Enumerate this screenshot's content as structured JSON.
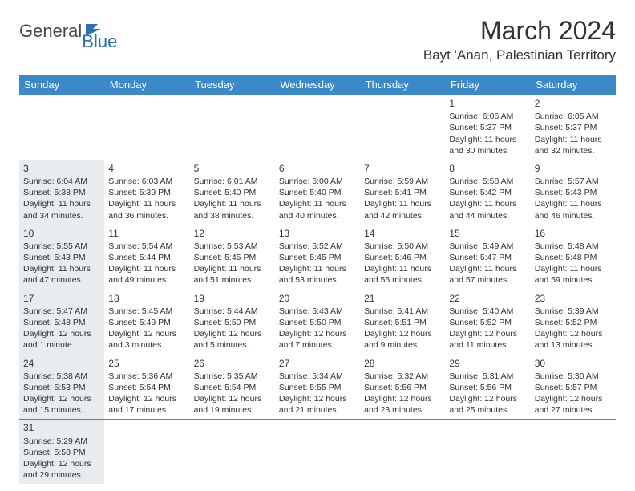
{
  "logo": {
    "general": "General",
    "blue": "Blue"
  },
  "title": "March 2024",
  "location": "Bayt 'Anan, Palestinian Territory",
  "colors": {
    "header_bg": "#3b89c9",
    "header_text": "#ffffff",
    "shaded_bg": "#e9ecef",
    "border": "#3b89c9",
    "text": "#333333",
    "logo_blue": "#2a72b5"
  },
  "dayNames": [
    "Sunday",
    "Monday",
    "Tuesday",
    "Wednesday",
    "Thursday",
    "Friday",
    "Saturday"
  ],
  "weeks": [
    [
      {
        "empty": true
      },
      {
        "empty": true
      },
      {
        "empty": true
      },
      {
        "empty": true
      },
      {
        "empty": true
      },
      {
        "num": "1",
        "sunrise": "Sunrise: 6:06 AM",
        "sunset": "Sunset: 5:37 PM",
        "daylight": "Daylight: 11 hours and 30 minutes."
      },
      {
        "num": "2",
        "sunrise": "Sunrise: 6:05 AM",
        "sunset": "Sunset: 5:37 PM",
        "daylight": "Daylight: 11 hours and 32 minutes."
      }
    ],
    [
      {
        "num": "3",
        "shaded": true,
        "sunrise": "Sunrise: 6:04 AM",
        "sunset": "Sunset: 5:38 PM",
        "daylight": "Daylight: 11 hours and 34 minutes."
      },
      {
        "num": "4",
        "sunrise": "Sunrise: 6:03 AM",
        "sunset": "Sunset: 5:39 PM",
        "daylight": "Daylight: 11 hours and 36 minutes."
      },
      {
        "num": "5",
        "sunrise": "Sunrise: 6:01 AM",
        "sunset": "Sunset: 5:40 PM",
        "daylight": "Daylight: 11 hours and 38 minutes."
      },
      {
        "num": "6",
        "sunrise": "Sunrise: 6:00 AM",
        "sunset": "Sunset: 5:40 PM",
        "daylight": "Daylight: 11 hours and 40 minutes."
      },
      {
        "num": "7",
        "sunrise": "Sunrise: 5:59 AM",
        "sunset": "Sunset: 5:41 PM",
        "daylight": "Daylight: 11 hours and 42 minutes."
      },
      {
        "num": "8",
        "sunrise": "Sunrise: 5:58 AM",
        "sunset": "Sunset: 5:42 PM",
        "daylight": "Daylight: 11 hours and 44 minutes."
      },
      {
        "num": "9",
        "sunrise": "Sunrise: 5:57 AM",
        "sunset": "Sunset: 5:43 PM",
        "daylight": "Daylight: 11 hours and 46 minutes."
      }
    ],
    [
      {
        "num": "10",
        "shaded": true,
        "sunrise": "Sunrise: 5:55 AM",
        "sunset": "Sunset: 5:43 PM",
        "daylight": "Daylight: 11 hours and 47 minutes."
      },
      {
        "num": "11",
        "sunrise": "Sunrise: 5:54 AM",
        "sunset": "Sunset: 5:44 PM",
        "daylight": "Daylight: 11 hours and 49 minutes."
      },
      {
        "num": "12",
        "sunrise": "Sunrise: 5:53 AM",
        "sunset": "Sunset: 5:45 PM",
        "daylight": "Daylight: 11 hours and 51 minutes."
      },
      {
        "num": "13",
        "sunrise": "Sunrise: 5:52 AM",
        "sunset": "Sunset: 5:45 PM",
        "daylight": "Daylight: 11 hours and 53 minutes."
      },
      {
        "num": "14",
        "sunrise": "Sunrise: 5:50 AM",
        "sunset": "Sunset: 5:46 PM",
        "daylight": "Daylight: 11 hours and 55 minutes."
      },
      {
        "num": "15",
        "sunrise": "Sunrise: 5:49 AM",
        "sunset": "Sunset: 5:47 PM",
        "daylight": "Daylight: 11 hours and 57 minutes."
      },
      {
        "num": "16",
        "sunrise": "Sunrise: 5:48 AM",
        "sunset": "Sunset: 5:48 PM",
        "daylight": "Daylight: 11 hours and 59 minutes."
      }
    ],
    [
      {
        "num": "17",
        "shaded": true,
        "sunrise": "Sunrise: 5:47 AM",
        "sunset": "Sunset: 5:48 PM",
        "daylight": "Daylight: 12 hours and 1 minute."
      },
      {
        "num": "18",
        "sunrise": "Sunrise: 5:45 AM",
        "sunset": "Sunset: 5:49 PM",
        "daylight": "Daylight: 12 hours and 3 minutes."
      },
      {
        "num": "19",
        "sunrise": "Sunrise: 5:44 AM",
        "sunset": "Sunset: 5:50 PM",
        "daylight": "Daylight: 12 hours and 5 minutes."
      },
      {
        "num": "20",
        "sunrise": "Sunrise: 5:43 AM",
        "sunset": "Sunset: 5:50 PM",
        "daylight": "Daylight: 12 hours and 7 minutes."
      },
      {
        "num": "21",
        "sunrise": "Sunrise: 5:41 AM",
        "sunset": "Sunset: 5:51 PM",
        "daylight": "Daylight: 12 hours and 9 minutes."
      },
      {
        "num": "22",
        "sunrise": "Sunrise: 5:40 AM",
        "sunset": "Sunset: 5:52 PM",
        "daylight": "Daylight: 12 hours and 11 minutes."
      },
      {
        "num": "23",
        "sunrise": "Sunrise: 5:39 AM",
        "sunset": "Sunset: 5:52 PM",
        "daylight": "Daylight: 12 hours and 13 minutes."
      }
    ],
    [
      {
        "num": "24",
        "shaded": true,
        "sunrise": "Sunrise: 5:38 AM",
        "sunset": "Sunset: 5:53 PM",
        "daylight": "Daylight: 12 hours and 15 minutes."
      },
      {
        "num": "25",
        "sunrise": "Sunrise: 5:36 AM",
        "sunset": "Sunset: 5:54 PM",
        "daylight": "Daylight: 12 hours and 17 minutes."
      },
      {
        "num": "26",
        "sunrise": "Sunrise: 5:35 AM",
        "sunset": "Sunset: 5:54 PM",
        "daylight": "Daylight: 12 hours and 19 minutes."
      },
      {
        "num": "27",
        "sunrise": "Sunrise: 5:34 AM",
        "sunset": "Sunset: 5:55 PM",
        "daylight": "Daylight: 12 hours and 21 minutes."
      },
      {
        "num": "28",
        "sunrise": "Sunrise: 5:32 AM",
        "sunset": "Sunset: 5:56 PM",
        "daylight": "Daylight: 12 hours and 23 minutes."
      },
      {
        "num": "29",
        "sunrise": "Sunrise: 5:31 AM",
        "sunset": "Sunset: 5:56 PM",
        "daylight": "Daylight: 12 hours and 25 minutes."
      },
      {
        "num": "30",
        "sunrise": "Sunrise: 5:30 AM",
        "sunset": "Sunset: 5:57 PM",
        "daylight": "Daylight: 12 hours and 27 minutes."
      }
    ],
    [
      {
        "num": "31",
        "shaded": true,
        "sunrise": "Sunrise: 5:29 AM",
        "sunset": "Sunset: 5:58 PM",
        "daylight": "Daylight: 12 hours and 29 minutes."
      },
      {
        "empty": true
      },
      {
        "empty": true
      },
      {
        "empty": true
      },
      {
        "empty": true
      },
      {
        "empty": true
      },
      {
        "empty": true
      }
    ]
  ]
}
